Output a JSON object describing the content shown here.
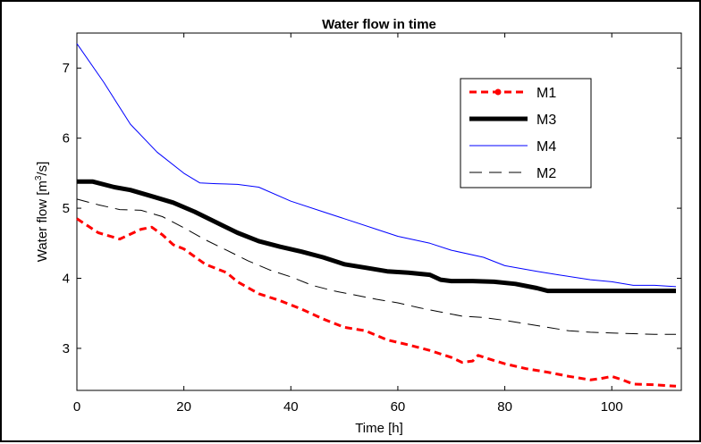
{
  "chart_data": {
    "type": "line",
    "title": "Water flow in time",
    "xlabel": "Time [h]",
    "ylabel_base": "Water flow [m",
    "ylabel_sup": "3",
    "ylabel_tail": "/s]",
    "xlim": [
      0,
      113
    ],
    "ylim": [
      2.4,
      7.5
    ],
    "x_ticks": [
      0,
      20,
      40,
      60,
      80,
      100
    ],
    "y_ticks": [
      3,
      4,
      5,
      6,
      7
    ],
    "grid": false,
    "legend_position": "top-right",
    "legend_order": [
      "M1",
      "M3",
      "M4",
      "M2"
    ],
    "series": [
      {
        "name": "M1",
        "color": "#ff0000",
        "style": "dashed-dot-marker",
        "x": [
          0,
          4,
          8,
          12,
          14,
          16,
          18,
          20,
          24,
          28,
          30,
          34,
          38,
          42,
          46,
          50,
          54,
          58,
          62,
          66,
          70,
          72,
          74,
          75,
          77,
          80,
          84,
          88,
          92,
          96,
          98,
          100,
          102,
          104,
          108,
          112
        ],
        "y": [
          4.85,
          4.65,
          4.56,
          4.7,
          4.73,
          4.62,
          4.48,
          4.42,
          4.2,
          4.08,
          3.95,
          3.78,
          3.68,
          3.56,
          3.42,
          3.3,
          3.25,
          3.12,
          3.05,
          2.97,
          2.87,
          2.8,
          2.82,
          2.9,
          2.85,
          2.78,
          2.71,
          2.66,
          2.6,
          2.55,
          2.57,
          2.6,
          2.55,
          2.49,
          2.48,
          2.46
        ]
      },
      {
        "name": "M3",
        "color": "#000000",
        "style": "thick-solid",
        "x": [
          0,
          3,
          7,
          10,
          14,
          18,
          22,
          26,
          30,
          34,
          38,
          42,
          46,
          50,
          54,
          58,
          62,
          66,
          68,
          70,
          74,
          78,
          82,
          86,
          88,
          92,
          96,
          100,
          104,
          108,
          112
        ],
        "y": [
          5.38,
          5.38,
          5.3,
          5.26,
          5.17,
          5.08,
          4.95,
          4.8,
          4.65,
          4.53,
          4.45,
          4.38,
          4.3,
          4.2,
          4.15,
          4.1,
          4.08,
          4.05,
          3.98,
          3.96,
          3.96,
          3.95,
          3.92,
          3.86,
          3.82,
          3.82,
          3.82,
          3.82,
          3.82,
          3.82,
          3.82
        ]
      },
      {
        "name": "M4",
        "color": "#0000ff",
        "style": "thin-solid",
        "x": [
          0,
          5,
          10,
          15,
          20,
          23,
          26,
          30,
          34,
          40,
          46,
          50,
          56,
          60,
          66,
          70,
          76,
          80,
          86,
          90,
          96,
          100,
          104,
          108,
          112
        ],
        "y": [
          7.35,
          6.8,
          6.2,
          5.8,
          5.5,
          5.36,
          5.35,
          5.34,
          5.3,
          5.1,
          4.95,
          4.85,
          4.7,
          4.6,
          4.5,
          4.4,
          4.3,
          4.18,
          4.1,
          4.05,
          3.98,
          3.95,
          3.9,
          3.9,
          3.88
        ]
      },
      {
        "name": "M2",
        "color": "#000000",
        "style": "thin-dashed",
        "x": [
          0,
          4,
          8,
          12,
          16,
          20,
          24,
          28,
          32,
          36,
          40,
          44,
          48,
          52,
          56,
          60,
          64,
          68,
          72,
          76,
          80,
          84,
          88,
          92,
          96,
          100,
          104,
          108,
          112
        ],
        "y": [
          5.13,
          5.05,
          4.98,
          4.97,
          4.88,
          4.72,
          4.55,
          4.4,
          4.25,
          4.12,
          4.02,
          3.9,
          3.82,
          3.76,
          3.7,
          3.65,
          3.58,
          3.52,
          3.46,
          3.44,
          3.4,
          3.35,
          3.3,
          3.25,
          3.23,
          3.22,
          3.21,
          3.2,
          3.2
        ]
      }
    ]
  }
}
